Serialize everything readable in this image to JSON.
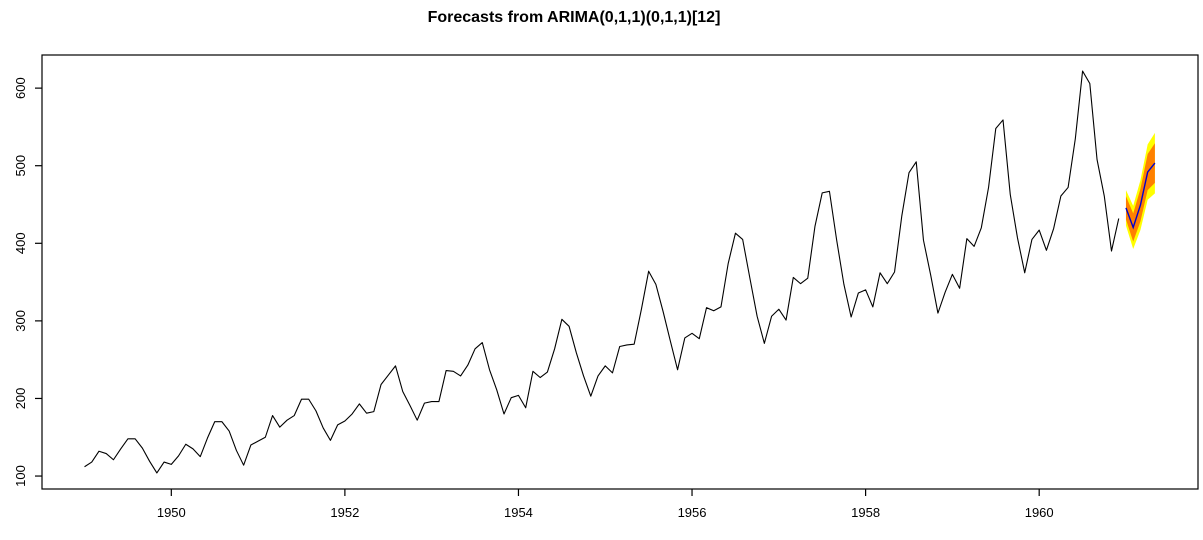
{
  "chart_data": {
    "type": "line",
    "title": "Forecasts from ARIMA(0,1,1)(0,1,1)[12]",
    "xlabel": "",
    "ylabel": "",
    "grid": false,
    "legend": false,
    "x_ticks": [
      1950,
      1952,
      1954,
      1956,
      1958,
      1960
    ],
    "y_ticks": [
      100,
      200,
      300,
      400,
      500,
      600
    ],
    "xlim": [
      1948.51,
      1961.83
    ],
    "ylim": [
      83.3,
      642.7
    ],
    "observed_series": {
      "name": "observed",
      "start": 1949,
      "frequency": 12,
      "values": [
        112,
        118,
        132,
        129,
        121,
        135,
        148,
        148,
        136,
        119,
        104,
        118,
        115,
        126,
        141,
        135,
        125,
        149,
        170,
        170,
        158,
        133,
        114,
        140,
        145,
        150,
        178,
        163,
        172,
        178,
        199,
        199,
        184,
        162,
        146,
        166,
        171,
        180,
        193,
        181,
        183,
        218,
        230,
        242,
        209,
        191,
        172,
        194,
        196,
        196,
        236,
        235,
        229,
        243,
        264,
        272,
        237,
        211,
        180,
        201,
        204,
        188,
        235,
        227,
        234,
        264,
        302,
        293,
        259,
        229,
        203,
        229,
        242,
        233,
        267,
        269,
        270,
        315,
        364,
        347,
        312,
        274,
        237,
        278,
        284,
        277,
        317,
        313,
        318,
        374,
        413,
        405,
        355,
        306,
        271,
        306,
        315,
        301,
        356,
        348,
        355,
        422,
        465,
        467,
        404,
        347,
        305,
        336,
        340,
        318,
        362,
        348,
        363,
        435,
        491,
        505,
        404,
        359,
        310,
        337,
        360,
        342,
        406,
        396,
        420,
        472,
        548,
        559,
        463,
        407,
        362,
        405,
        417,
        391,
        419,
        461,
        472,
        535,
        622,
        606,
        508,
        461,
        390,
        432
      ]
    },
    "forecast": {
      "time": [
        1961.0,
        1961.0833,
        1961.1667,
        1961.25,
        1961.3333
      ],
      "mean": [
        445.6,
        420.4,
        449.2,
        491.8,
        503.4
      ],
      "lo80": [
        430.6,
        402.2,
        428.3,
        468.5,
        477.9
      ],
      "hi80": [
        460.6,
        438.6,
        470.1,
        515.1,
        528.9
      ],
      "lo95": [
        422.7,
        392.6,
        417.2,
        456.1,
        464.4
      ],
      "hi95": [
        468.5,
        448.2,
        481.2,
        527.5,
        542.4
      ]
    },
    "colors": {
      "observed_line": "#000000",
      "forecast_mean_line": "#0000CD",
      "band_80": "#FF8000",
      "band_95": "#FFFF00",
      "axis": "#000000",
      "background": "#FFFFFF"
    }
  }
}
